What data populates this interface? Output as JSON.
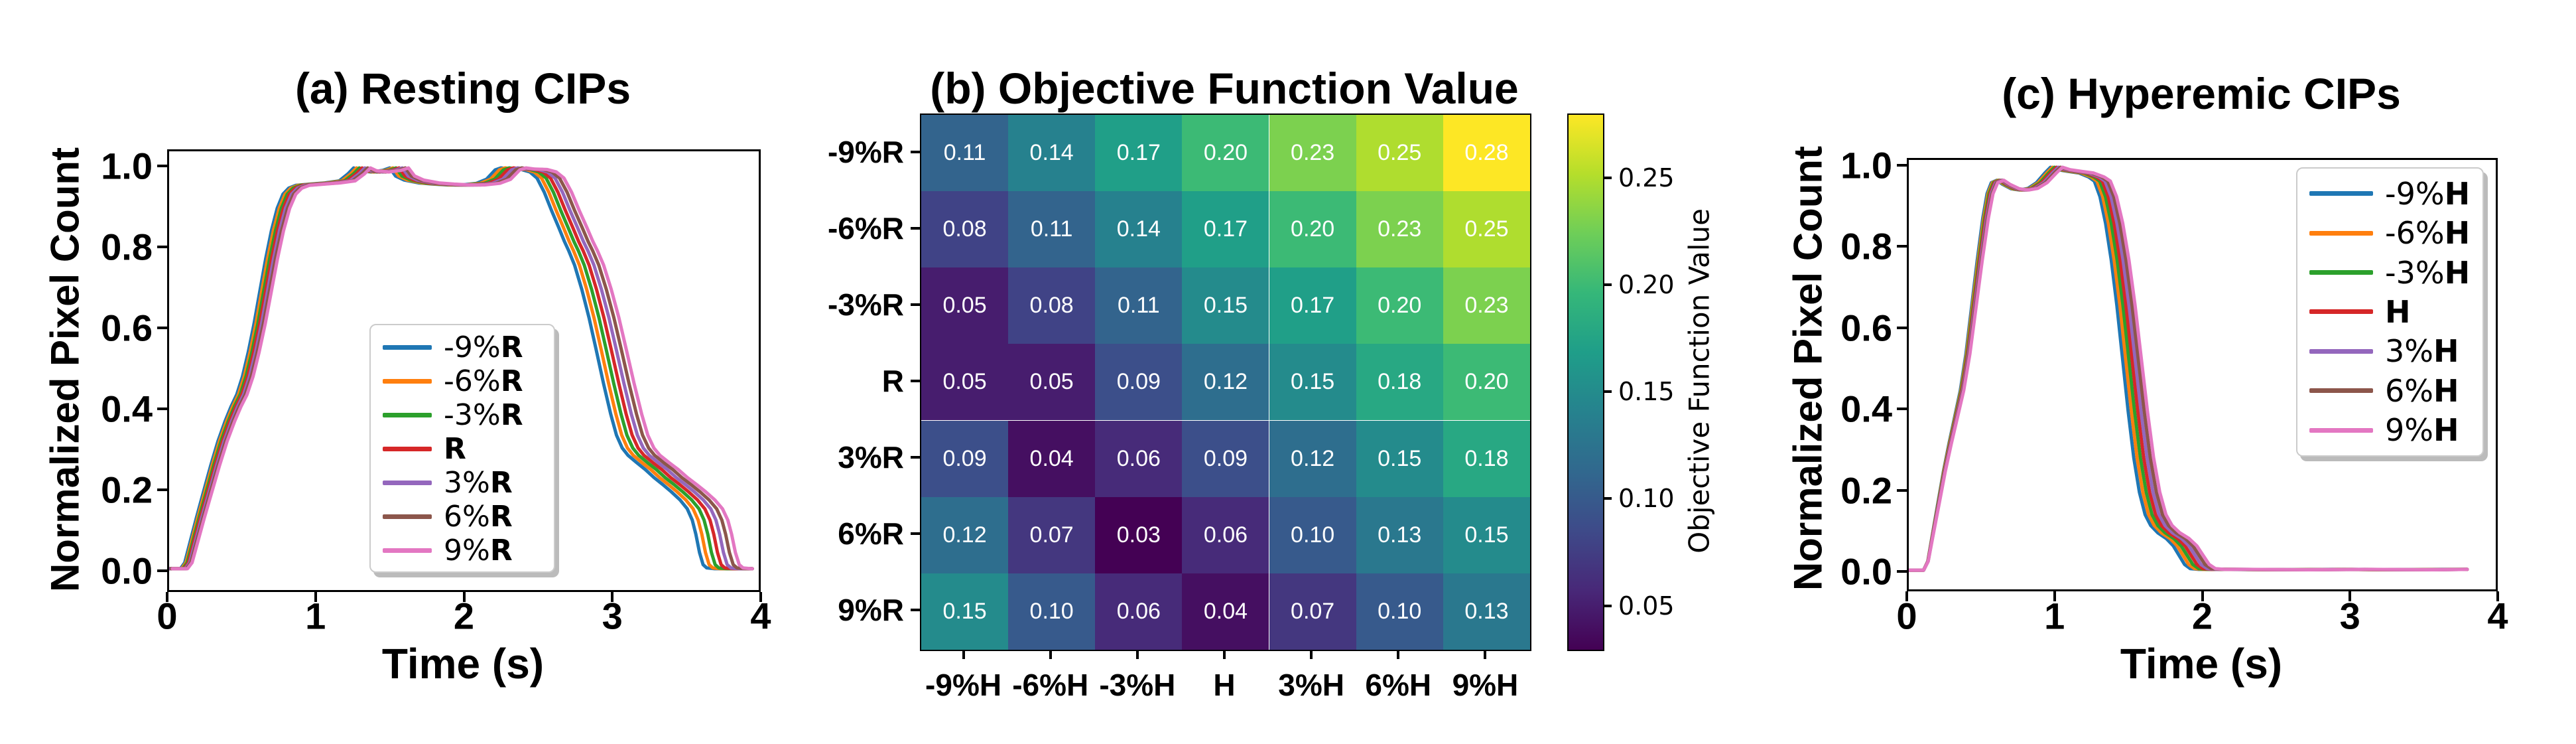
{
  "figure": {
    "background": "#ffffff"
  },
  "chart_data": [
    {
      "id": "a",
      "type": "line",
      "title": "(a) Resting CIPs",
      "xlabel": "Time (s)",
      "ylabel": "Normalized Pixel Count",
      "xlim": [
        0,
        4
      ],
      "ylim": [
        -0.05,
        1.04
      ],
      "xticks": [
        "0",
        "1",
        "2",
        "3",
        "4"
      ],
      "yticks": [
        "0.0",
        "0.2",
        "0.4",
        "0.6",
        "0.8",
        "1.0"
      ],
      "grid": false,
      "legend_position": "inside lower center-right",
      "time_anchor": 0.1,
      "t_end": 3.93,
      "series_note": "each series = base_curve with t' = anchor + (t-anchor)*time_scale + time_shift",
      "series": [
        {
          "label": "-9%R",
          "color": "#1f77b4",
          "time_scale": 0.973,
          "time_shift": -0.024
        },
        {
          "label": "-6%R",
          "color": "#ff7f0e",
          "time_scale": 0.982,
          "time_shift": -0.016
        },
        {
          "label": "-3%R",
          "color": "#2ca02c",
          "time_scale": 0.991,
          "time_shift": -0.008
        },
        {
          "label": "R",
          "color": "#d62728",
          "time_scale": 1.0,
          "time_shift": 0
        },
        {
          "label": "3%R",
          "color": "#9467bd",
          "time_scale": 1.009,
          "time_shift": 0.008
        },
        {
          "label": "6%R",
          "color": "#8c564b",
          "time_scale": 1.018,
          "time_shift": 0.016
        },
        {
          "label": "9%R",
          "color": "#e377c2",
          "time_scale": 1.027,
          "time_shift": 0.024
        }
      ],
      "base_curve": [
        [
          0,
          0.01
        ],
        [
          0.1,
          0.01
        ],
        [
          0.13,
          0.025
        ],
        [
          0.17,
          0.08
        ],
        [
          0.21,
          0.135
        ],
        [
          0.26,
          0.2
        ],
        [
          0.31,
          0.265
        ],
        [
          0.36,
          0.325
        ],
        [
          0.41,
          0.375
        ],
        [
          0.45,
          0.41
        ],
        [
          0.49,
          0.44
        ],
        [
          0.53,
          0.485
        ],
        [
          0.57,
          0.545
        ],
        [
          0.61,
          0.615
        ],
        [
          0.65,
          0.695
        ],
        [
          0.69,
          0.775
        ],
        [
          0.73,
          0.845
        ],
        [
          0.77,
          0.9
        ],
        [
          0.81,
          0.935
        ],
        [
          0.85,
          0.95
        ],
        [
          0.9,
          0.957
        ],
        [
          1.0,
          0.96
        ],
        [
          1.1,
          0.963
        ],
        [
          1.2,
          0.968
        ],
        [
          1.26,
          0.985
        ],
        [
          1.3,
          1.0
        ],
        [
          1.34,
          0.993
        ],
        [
          1.42,
          0.99
        ],
        [
          1.5,
          0.994
        ],
        [
          1.55,
          1.0
        ],
        [
          1.59,
          0.98
        ],
        [
          1.65,
          0.97
        ],
        [
          1.75,
          0.963
        ],
        [
          1.85,
          0.96
        ],
        [
          1.95,
          0.958
        ],
        [
          2.05,
          0.958
        ],
        [
          2.15,
          0.962
        ],
        [
          2.22,
          0.972
        ],
        [
          2.28,
          0.995
        ],
        [
          2.32,
          1.0
        ],
        [
          2.38,
          0.997
        ],
        [
          2.46,
          0.996
        ],
        [
          2.52,
          0.99
        ],
        [
          2.57,
          0.975
        ],
        [
          2.62,
          0.94
        ],
        [
          2.67,
          0.895
        ],
        [
          2.72,
          0.853
        ],
        [
          2.76,
          0.818
        ],
        [
          2.79,
          0.795
        ],
        [
          2.83,
          0.76
        ],
        [
          2.88,
          0.7
        ],
        [
          2.93,
          0.63
        ],
        [
          2.98,
          0.55
        ],
        [
          3.03,
          0.468
        ],
        [
          3.08,
          0.392
        ],
        [
          3.12,
          0.34
        ],
        [
          3.16,
          0.308
        ],
        [
          3.2,
          0.29
        ],
        [
          3.26,
          0.272
        ],
        [
          3.32,
          0.255
        ],
        [
          3.38,
          0.235
        ],
        [
          3.44,
          0.218
        ],
        [
          3.5,
          0.2
        ],
        [
          3.56,
          0.18
        ],
        [
          3.61,
          0.158
        ],
        [
          3.645,
          0.13
        ],
        [
          3.67,
          0.095
        ],
        [
          3.695,
          0.05
        ],
        [
          3.72,
          0.02
        ],
        [
          3.745,
          0.012
        ],
        [
          3.8,
          0.01
        ],
        [
          3.93,
          0.01
        ]
      ]
    },
    {
      "id": "b",
      "type": "heatmap",
      "title": "(b) Objective Function Value",
      "rows": [
        "-9%R",
        "-6%R",
        "-3%R",
        "R",
        "3%R",
        "6%R",
        "9%R"
      ],
      "cols": [
        "-9%H",
        "-6%H",
        "-3%H",
        "H",
        "3%H",
        "6%H",
        "9%H"
      ],
      "values": [
        [
          0.11,
          0.14,
          0.17,
          0.2,
          0.23,
          0.25,
          0.28
        ],
        [
          0.08,
          0.11,
          0.14,
          0.17,
          0.2,
          0.23,
          0.25
        ],
        [
          0.05,
          0.08,
          0.11,
          0.15,
          0.17,
          0.2,
          0.23
        ],
        [
          0.05,
          0.05,
          0.09,
          0.12,
          0.15,
          0.18,
          0.2
        ],
        [
          0.09,
          0.04,
          0.06,
          0.09,
          0.12,
          0.15,
          0.18
        ],
        [
          0.12,
          0.07,
          0.03,
          0.06,
          0.1,
          0.13,
          0.15
        ],
        [
          0.15,
          0.1,
          0.06,
          0.04,
          0.07,
          0.1,
          0.13
        ]
      ],
      "vmin": 0.03,
      "vmax": 0.28,
      "colormap": "viridis",
      "cell_text_color": "#ffffff",
      "colorbar": {
        "label": "Objective Function Value",
        "ticks": [
          "0.05",
          "0.10",
          "0.15",
          "0.20",
          "0.25"
        ]
      }
    },
    {
      "id": "c",
      "type": "line",
      "title": "(c) Hyperemic CIPs",
      "xlabel": "Time (s)",
      "ylabel": "Normalized Pixel Count",
      "xlim": [
        0,
        4
      ],
      "ylim": [
        -0.05,
        1.03
      ],
      "xticks": [
        "0",
        "1",
        "2",
        "3",
        "4"
      ],
      "yticks": [
        "0.0",
        "0.2",
        "0.4",
        "0.6",
        "0.8",
        "1.0"
      ],
      "grid": false,
      "legend_position": "inside upper right",
      "time_anchor": 0.1,
      "t_end": 3.78,
      "series_note": "each series = base_curve with t' = anchor + (t-anchor)*time_scale + time_shift",
      "series": [
        {
          "label": "-9%H",
          "color": "#1f77b4",
          "time_scale": 0.955,
          "time_shift": 0
        },
        {
          "label": "-6%H",
          "color": "#ff7f0e",
          "time_scale": 0.97,
          "time_shift": 0
        },
        {
          "label": "-3%H",
          "color": "#2ca02c",
          "time_scale": 0.985,
          "time_shift": 0
        },
        {
          "label": "H",
          "color": "#d62728",
          "time_scale": 1.0,
          "time_shift": 0
        },
        {
          "label": "3%H",
          "color": "#9467bd",
          "time_scale": 1.015,
          "time_shift": 0
        },
        {
          "label": "6%H",
          "color": "#8c564b",
          "time_scale": 1.03,
          "time_shift": 0
        },
        {
          "label": "9%H",
          "color": "#e377c2",
          "time_scale": 1.045,
          "time_shift": 0
        }
      ],
      "base_curve": [
        [
          0,
          0.008
        ],
        [
          0.1,
          0.008
        ],
        [
          0.13,
          0.03
        ],
        [
          0.16,
          0.09
        ],
        [
          0.2,
          0.17
        ],
        [
          0.24,
          0.25
        ],
        [
          0.28,
          0.32
        ],
        [
          0.32,
          0.385
        ],
        [
          0.36,
          0.45
        ],
        [
          0.4,
          0.54
        ],
        [
          0.44,
          0.655
        ],
        [
          0.48,
          0.77
        ],
        [
          0.52,
          0.875
        ],
        [
          0.55,
          0.935
        ],
        [
          0.58,
          0.962
        ],
        [
          0.62,
          0.968
        ],
        [
          0.66,
          0.958
        ],
        [
          0.72,
          0.947
        ],
        [
          0.78,
          0.944
        ],
        [
          0.84,
          0.948
        ],
        [
          0.9,
          0.962
        ],
        [
          0.96,
          0.986
        ],
        [
          1.0,
          1.0
        ],
        [
          1.05,
          0.994
        ],
        [
          1.12,
          0.99
        ],
        [
          1.2,
          0.986
        ],
        [
          1.27,
          0.976
        ],
        [
          1.31,
          0.966
        ],
        [
          1.35,
          0.928
        ],
        [
          1.39,
          0.862
        ],
        [
          1.43,
          0.772
        ],
        [
          1.47,
          0.66
        ],
        [
          1.51,
          0.53
        ],
        [
          1.55,
          0.4
        ],
        [
          1.59,
          0.285
        ],
        [
          1.63,
          0.2
        ],
        [
          1.67,
          0.145
        ],
        [
          1.71,
          0.118
        ],
        [
          1.76,
          0.1
        ],
        [
          1.82,
          0.086
        ],
        [
          1.87,
          0.068
        ],
        [
          1.91,
          0.045
        ],
        [
          1.95,
          0.022
        ],
        [
          1.99,
          0.012
        ],
        [
          2.05,
          0.01
        ],
        [
          2.2,
          0.01
        ],
        [
          2.6,
          0.009
        ],
        [
          3.0,
          0.01
        ],
        [
          3.4,
          0.009
        ],
        [
          3.78,
          0.01
        ]
      ]
    }
  ]
}
